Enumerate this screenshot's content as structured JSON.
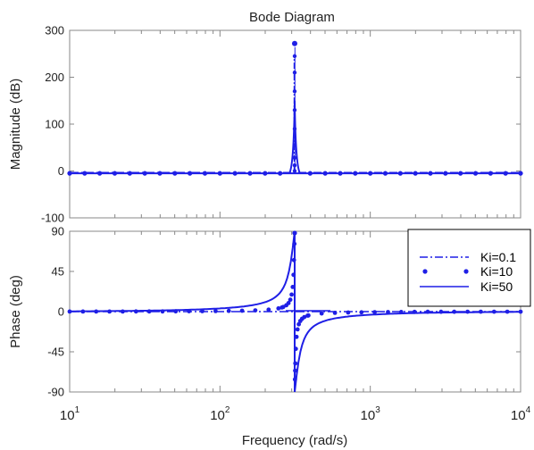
{
  "chart_data": {
    "type": "line",
    "title": "Bode Diagram",
    "xlabel": "Frequency  (rad/s)",
    "x_scale": "log",
    "xlim": [
      10,
      10000
    ],
    "x_ticks": [
      {
        "value": 10,
        "base": "10",
        "exp": "1"
      },
      {
        "value": 100,
        "base": "10",
        "exp": "2"
      },
      {
        "value": 1000,
        "base": "10",
        "exp": "3"
      },
      {
        "value": 10000,
        "base": "10",
        "exp": "4"
      }
    ],
    "resonance_frequency": 314,
    "grid": false,
    "legend_position": "right",
    "colors": {
      "series": "#1f1fe6",
      "frame": "#888888",
      "background": "#ffffff"
    },
    "panels": [
      {
        "id": "magnitude",
        "ylabel": "Magnitude (dB)",
        "ylim": [
          -100,
          300
        ],
        "yticks": [
          -100,
          0,
          100,
          200,
          300
        ],
        "peak_value": 272
      },
      {
        "id": "phase",
        "ylabel": "Phase (deg)",
        "ylim": [
          -90,
          90
        ],
        "yticks": [
          -90,
          -45,
          0,
          45,
          90
        ]
      }
    ],
    "series": [
      {
        "name": "Ki=0.1",
        "style": "dash-dot",
        "magnitude_peak": 240
      },
      {
        "name": "Ki=10",
        "style": "dots",
        "magnitude_peak": 272
      },
      {
        "name": "Ki=50",
        "style": "solid",
        "magnitude_peak": 150
      }
    ]
  }
}
